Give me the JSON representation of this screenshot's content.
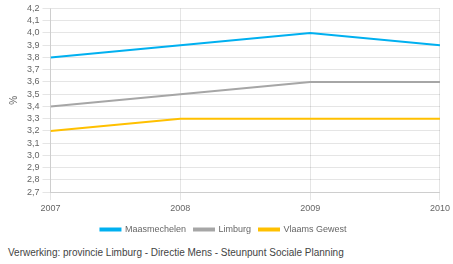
{
  "chart_data": {
    "type": "line",
    "x": [
      2007,
      2008,
      2009,
      2010
    ],
    "series": [
      {
        "name": "Maasmechelen",
        "color": "#00b0f0",
        "values": [
          3.8,
          3.9,
          4.0,
          3.9
        ]
      },
      {
        "name": "Limburg",
        "color": "#a6a6a6",
        "values": [
          3.4,
          3.5,
          3.6,
          3.6
        ]
      },
      {
        "name": "Vlaams Gewest",
        "color": "#ffc000",
        "values": [
          3.2,
          3.3,
          3.3,
          3.3
        ]
      }
    ],
    "y_label": "%",
    "xlim": [
      2007,
      2010
    ],
    "xticks": [
      2007,
      2008,
      2009,
      2010
    ],
    "ylim": [
      2.7,
      4.2
    ],
    "yticks": [
      {
        "value": 2.7,
        "label": "2,7"
      },
      {
        "value": 2.8,
        "label": "2,8"
      },
      {
        "value": 2.9,
        "label": "2,9"
      },
      {
        "value": 3.0,
        "label": "3,0"
      },
      {
        "value": 3.1,
        "label": "3,1"
      },
      {
        "value": 3.2,
        "label": "3,2"
      },
      {
        "value": 3.3,
        "label": "3,3"
      },
      {
        "value": 3.4,
        "label": "3,4"
      },
      {
        "value": 3.5,
        "label": "3,5"
      },
      {
        "value": 3.6,
        "label": "3,6"
      },
      {
        "value": 3.7,
        "label": "3,7"
      },
      {
        "value": 3.8,
        "label": "3,8"
      },
      {
        "value": 3.9,
        "label": "3,9"
      },
      {
        "value": 4.0,
        "label": "4,0"
      },
      {
        "value": 4.1,
        "label": "4,1"
      },
      {
        "value": 4.2,
        "label": "4,2"
      }
    ],
    "grid": true,
    "legend": "bottom",
    "annotations": [
      "Verwerking: provincie Limburg - Directie Mens - Steunpunt Sociale Planning"
    ]
  }
}
